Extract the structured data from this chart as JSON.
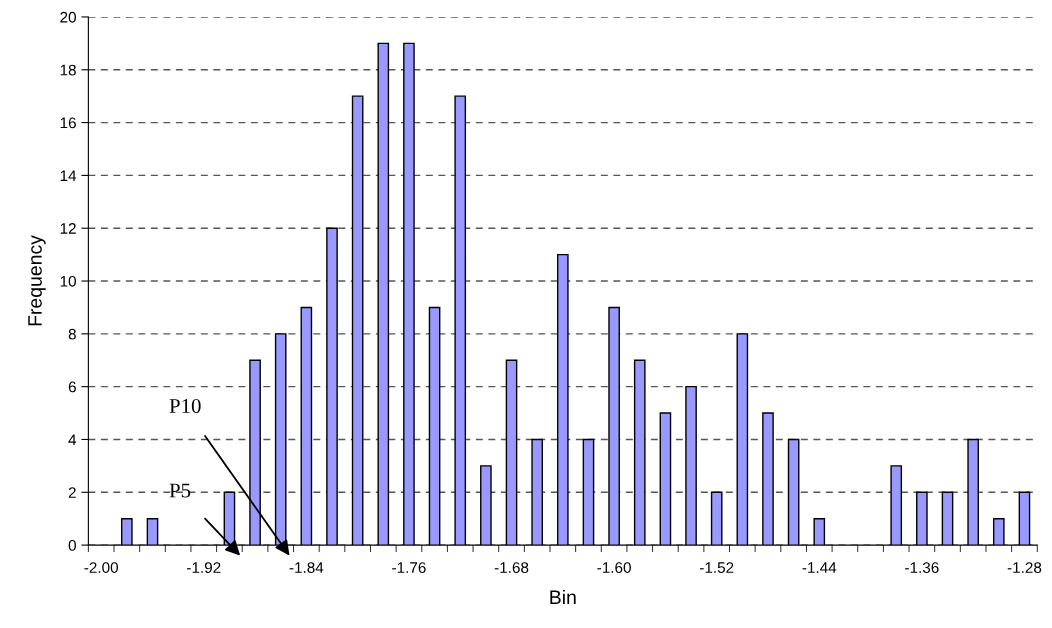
{
  "chart_data": {
    "type": "bar",
    "xlabel": "Bin",
    "ylabel": "Frequency",
    "categories": [
      "-2.00",
      null,
      null,
      null,
      "-1.92",
      null,
      null,
      null,
      "-1.84",
      null,
      null,
      null,
      "-1.76",
      null,
      null,
      null,
      "-1.68",
      null,
      null,
      null,
      "-1.60",
      null,
      null,
      null,
      "-1.52",
      null,
      null,
      null,
      "-1.44",
      null,
      null,
      null,
      "-1.36",
      null,
      null,
      null,
      "-1.28"
    ],
    "values": [
      0,
      1,
      1,
      0,
      0,
      2,
      7,
      8,
      9,
      12,
      17,
      19,
      19,
      9,
      17,
      3,
      7,
      4,
      11,
      4,
      9,
      7,
      5,
      6,
      2,
      8,
      5,
      4,
      1,
      0,
      0,
      3,
      2,
      2,
      4,
      1,
      2
    ],
    "color": "#9999ff",
    "ylim": [
      0,
      20
    ],
    "yticks": [
      0,
      2,
      4,
      6,
      8,
      10,
      12,
      14,
      16,
      18,
      20
    ],
    "grid": "y",
    "annotations": [
      "P10",
      "P5"
    ]
  }
}
